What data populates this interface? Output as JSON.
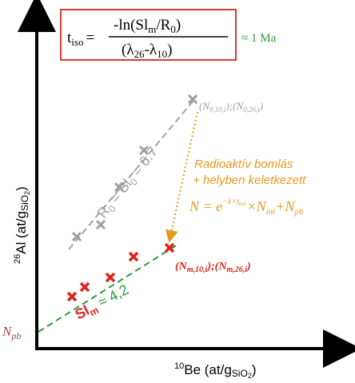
{
  "formula": {
    "lhs_base": "t",
    "lhs_sub": "iso",
    "equals": "=",
    "numerator": "-ln(Sl",
    "numerator_sub": "m",
    "numerator_mid": "/R",
    "numerator_sub2": "0",
    "numerator_end": ")",
    "denominator": "(λ",
    "denominator_sub": "26",
    "denominator_mid": "-λ",
    "denominator_sub2": "10",
    "denominator_end": ")",
    "approx": "≈ 1 Ma"
  },
  "axes": {
    "y_label_sup": "26",
    "y_label_main": "Al (at/g",
    "y_label_sub": "SiO",
    "y_label_sub2": "2",
    "y_label_end": ")",
    "x_label_sup": "10",
    "x_label_main": "Be (at/g",
    "x_label_sub": "SiO",
    "x_label_sub2": "2",
    "x_label_end": ")"
  },
  "labels": {
    "gray_ratio": "R",
    "gray_ratio_sub0": "0",
    "gray_ratio_mid": " = Sl",
    "gray_ratio_sub1": "0",
    "gray_ratio_end": " = 6.7",
    "gray_point": "(N",
    "gray_point_sub1": "0,10,i",
    "gray_point_mid": ");(N",
    "gray_point_sub2": "0,26,i",
    "gray_point_end": ")",
    "orange_line1": "Radioaktív bomlás",
    "orange_line2": "+ helyben keletkezett",
    "orange_eq_lhs": "N = e",
    "orange_eq_sup": "−λ×t",
    "orange_eq_sup_sub": "bur",
    "orange_eq_rest": "×N",
    "orange_eq_sub": "int",
    "orange_eq_plus": "+N",
    "orange_eq_sub2": "pb",
    "red_point": "(N",
    "red_point_sub1": "m,10,i",
    "red_point_mid": ");(N",
    "red_point_sub2": "m,26,i",
    "red_point_end": ")",
    "green_sl": "Sl",
    "green_sl_sub": "m",
    "green_approx": " ≈ 4,2",
    "npb": "N",
    "npb_sub": "pb"
  },
  "colors": {
    "gray": "#a0a0a0",
    "red": "#e0201c",
    "green": "#2a9a3a",
    "orange": "#e59a1e",
    "brown": "#9a4a3a",
    "box_border": "#d63a33",
    "black": "#000000"
  }
}
